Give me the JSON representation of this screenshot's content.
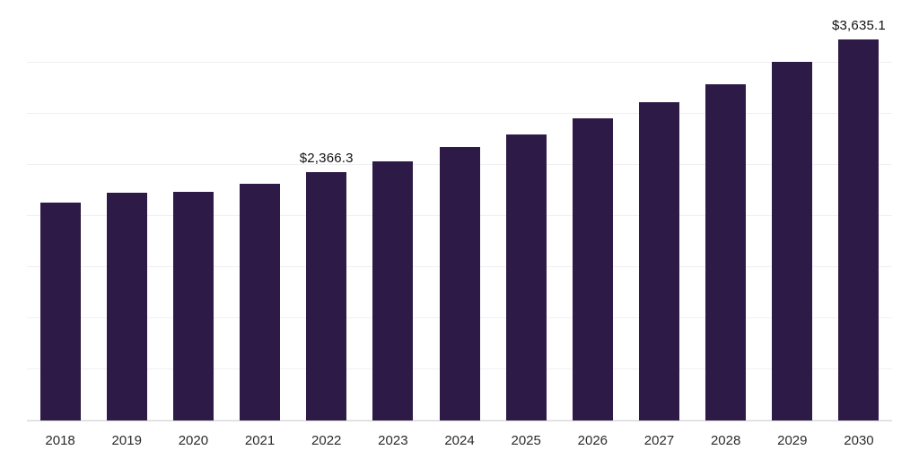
{
  "chart_data": {
    "type": "bar",
    "categories": [
      "2018",
      "2019",
      "2020",
      "2021",
      "2022",
      "2023",
      "2024",
      "2025",
      "2026",
      "2027",
      "2028",
      "2029",
      "2030"
    ],
    "values": [
      2080,
      2170,
      2185,
      2260,
      2366.3,
      2470,
      2605,
      2730,
      2885,
      3040,
      3210,
      3420,
      3635.1
    ],
    "data_labels": [
      "",
      "",
      "",
      "",
      "$2,366.3",
      "",
      "",
      "",
      "",
      "",
      "",
      "",
      "$3,635.1"
    ],
    "title": "",
    "xlabel": "",
    "ylabel": "",
    "ylim": [
      0,
      3900
    ],
    "grid": "horizontal",
    "legend": "none",
    "bar_color": "#2e1a47"
  },
  "colors": {
    "bar": "#2e1a47",
    "gridline": "#f1eef4",
    "axis_line": "#d6d6d6",
    "tick_label": "#2b2b2b",
    "value_label": "#111111",
    "background": "#ffffff"
  }
}
